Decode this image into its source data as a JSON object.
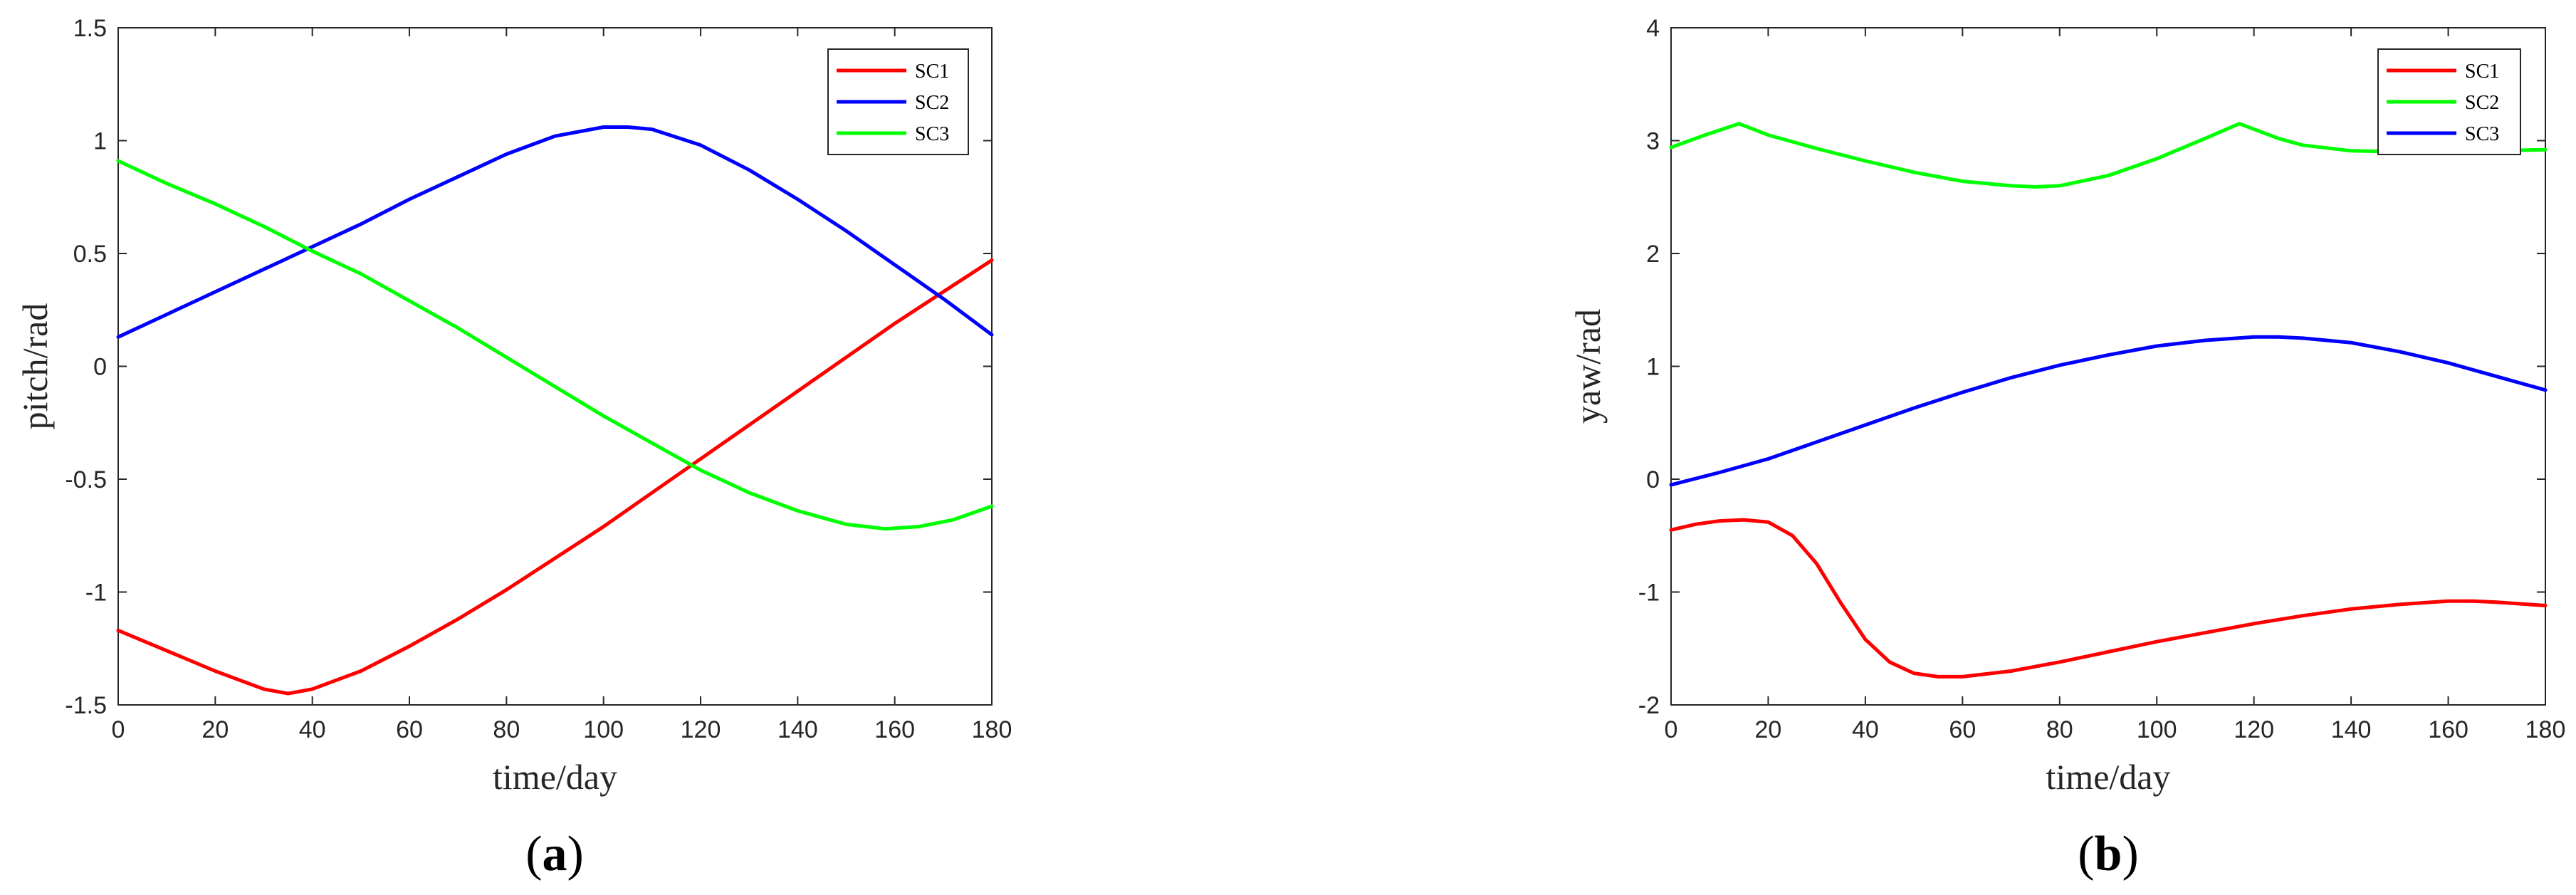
{
  "chart_data": [
    {
      "type": "line",
      "panel_label": "a",
      "xlabel": "time/day",
      "ylabel": "pitch/rad",
      "xlim": [
        0,
        180
      ],
      "ylim": [
        -1.5,
        1.5
      ],
      "xticks": [
        0,
        20,
        40,
        60,
        80,
        100,
        120,
        140,
        160,
        180
      ],
      "yticks": [
        -1.5,
        -1,
        -0.5,
        0,
        0.5,
        1,
        1.5
      ],
      "grid": false,
      "legend": "top-right",
      "series": [
        {
          "name": "SC1",
          "color": "#ff0000",
          "x": [
            0,
            10,
            20,
            30,
            35,
            40,
            50,
            60,
            70,
            80,
            90,
            100,
            110,
            120,
            130,
            140,
            150,
            160,
            170,
            180
          ],
          "y": [
            -1.17,
            -1.26,
            -1.35,
            -1.43,
            -1.45,
            -1.43,
            -1.35,
            -1.24,
            -1.12,
            -0.99,
            -0.85,
            -0.71,
            -0.56,
            -0.41,
            -0.26,
            -0.11,
            0.04,
            0.19,
            0.33,
            0.47
          ]
        },
        {
          "name": "SC2",
          "color": "#0000ff",
          "x": [
            0,
            10,
            20,
            30,
            40,
            50,
            60,
            70,
            80,
            90,
            100,
            105,
            110,
            120,
            130,
            140,
            150,
            160,
            170,
            180
          ],
          "y": [
            0.13,
            0.23,
            0.33,
            0.43,
            0.53,
            0.63,
            0.74,
            0.84,
            0.94,
            1.02,
            1.06,
            1.06,
            1.05,
            0.98,
            0.87,
            0.74,
            0.6,
            0.45,
            0.3,
            0.14
          ]
        },
        {
          "name": "SC3",
          "color": "#00ff00",
          "x": [
            0,
            10,
            20,
            30,
            40,
            50,
            60,
            70,
            80,
            90,
            100,
            110,
            120,
            130,
            140,
            150,
            158,
            165,
            172,
            180
          ],
          "y": [
            0.91,
            0.81,
            0.72,
            0.62,
            0.51,
            0.41,
            0.29,
            0.17,
            0.04,
            -0.09,
            -0.22,
            -0.34,
            -0.46,
            -0.56,
            -0.64,
            -0.7,
            -0.72,
            -0.71,
            -0.68,
            -0.62
          ]
        }
      ]
    },
    {
      "type": "line",
      "panel_label": "b",
      "xlabel": "time/day",
      "ylabel": "yaw/rad",
      "xlim": [
        0,
        180
      ],
      "ylim": [
        -2,
        4
      ],
      "xticks": [
        0,
        20,
        40,
        60,
        80,
        100,
        120,
        140,
        160,
        180
      ],
      "yticks": [
        -2,
        -1,
        0,
        1,
        2,
        3,
        4
      ],
      "grid": false,
      "legend": "top-right",
      "series": [
        {
          "name": "SC1",
          "color": "#ff0000",
          "x": [
            0,
            5,
            10,
            15,
            20,
            25,
            30,
            35,
            40,
            45,
            50,
            55,
            60,
            70,
            80,
            90,
            100,
            110,
            120,
            130,
            140,
            150,
            160,
            165,
            170,
            180
          ],
          "y": [
            -0.45,
            -0.4,
            -0.37,
            -0.36,
            -0.38,
            -0.5,
            -0.75,
            -1.1,
            -1.42,
            -1.62,
            -1.72,
            -1.75,
            -1.75,
            -1.7,
            -1.62,
            -1.53,
            -1.44,
            -1.36,
            -1.28,
            -1.21,
            -1.15,
            -1.11,
            -1.08,
            -1.08,
            -1.09,
            -1.12
          ]
        },
        {
          "name": "SC2",
          "color": "#00ff00",
          "x": [
            0,
            7,
            14,
            20,
            30,
            40,
            50,
            60,
            70,
            75,
            80,
            90,
            100,
            110,
            117,
            125,
            130,
            140,
            150,
            160,
            170,
            180
          ],
          "y": [
            2.94,
            3.05,
            3.15,
            3.05,
            2.93,
            2.82,
            2.72,
            2.64,
            2.6,
            2.59,
            2.6,
            2.69,
            2.84,
            3.02,
            3.15,
            3.02,
            2.96,
            2.91,
            2.9,
            2.91,
            2.91,
            2.92
          ]
        },
        {
          "name": "SC3",
          "color": "#0000ff",
          "x": [
            0,
            10,
            20,
            30,
            40,
            50,
            60,
            70,
            80,
            90,
            100,
            110,
            120,
            125,
            130,
            140,
            150,
            160,
            170,
            180
          ],
          "y": [
            -0.05,
            0.06,
            0.18,
            0.33,
            0.48,
            0.63,
            0.77,
            0.9,
            1.01,
            1.1,
            1.18,
            1.23,
            1.26,
            1.26,
            1.25,
            1.21,
            1.13,
            1.03,
            0.91,
            0.79
          ]
        }
      ]
    }
  ]
}
